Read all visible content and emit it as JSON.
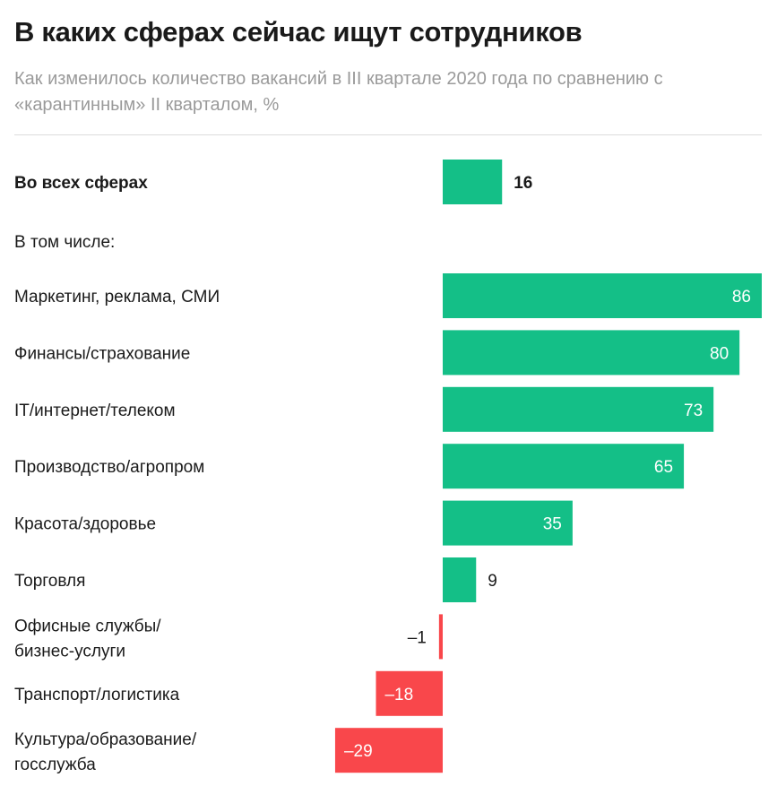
{
  "title": "В каких сферах сейчас ищут сотрудников",
  "subtitle": "Как изменилось количество вакансий в III квартале 2020 года по сравнению с «карантинным» II кварталом, %",
  "colors": {
    "positive": "#14bf87",
    "negative": "#f9474b",
    "text": "#1a1a1a",
    "subtitle": "#9a9a9a"
  },
  "chart_data": {
    "type": "bar",
    "orientation": "horizontal",
    "total": {
      "label": "Во всех сферах",
      "value": 16
    },
    "group_label": "В том числе:",
    "categories": [
      "Маркетинг, реклама, СМИ",
      "Финансы/страхование",
      "IT/интернет/телеком",
      "Производство/агропром",
      "Красота/здоровье",
      "Торговля",
      "Офисные службы/ бизнес-услуги",
      "Транспорт/логистика",
      "Культура/образование/ госслужба"
    ],
    "values": [
      86,
      80,
      73,
      65,
      35,
      9,
      -1,
      -18,
      -29
    ],
    "value_labels": [
      "86",
      "80",
      "73",
      "65",
      "35",
      "9",
      "–1",
      "–18",
      "–29"
    ],
    "xlim": [
      -29,
      86
    ],
    "grid": false,
    "legend": "none"
  }
}
